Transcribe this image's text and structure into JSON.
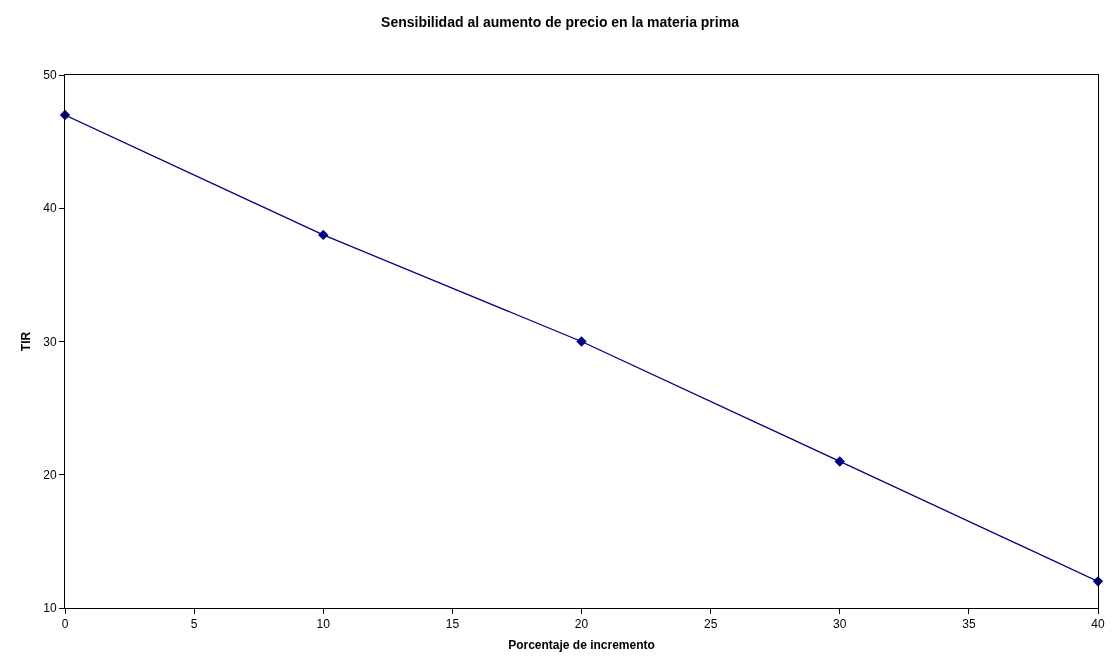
{
  "chart_data": {
    "type": "line",
    "title": "Sensibilidad al aumento de precio en la materia prima",
    "xlabel": "Porcentaje de incremento",
    "ylabel": "TIR",
    "x": [
      0,
      10,
      20,
      30,
      40
    ],
    "series": [
      {
        "color": "#000080",
        "values": [
          47,
          38,
          30,
          21,
          12
        ]
      }
    ],
    "xlim": [
      0,
      40
    ],
    "xticks": [
      0,
      5,
      10,
      15,
      20,
      25,
      30,
      35,
      40
    ],
    "ylim": [
      10,
      50
    ],
    "yticks": [
      10,
      20,
      30,
      40,
      50
    ],
    "marker": "diamond",
    "line_style": "solid"
  }
}
